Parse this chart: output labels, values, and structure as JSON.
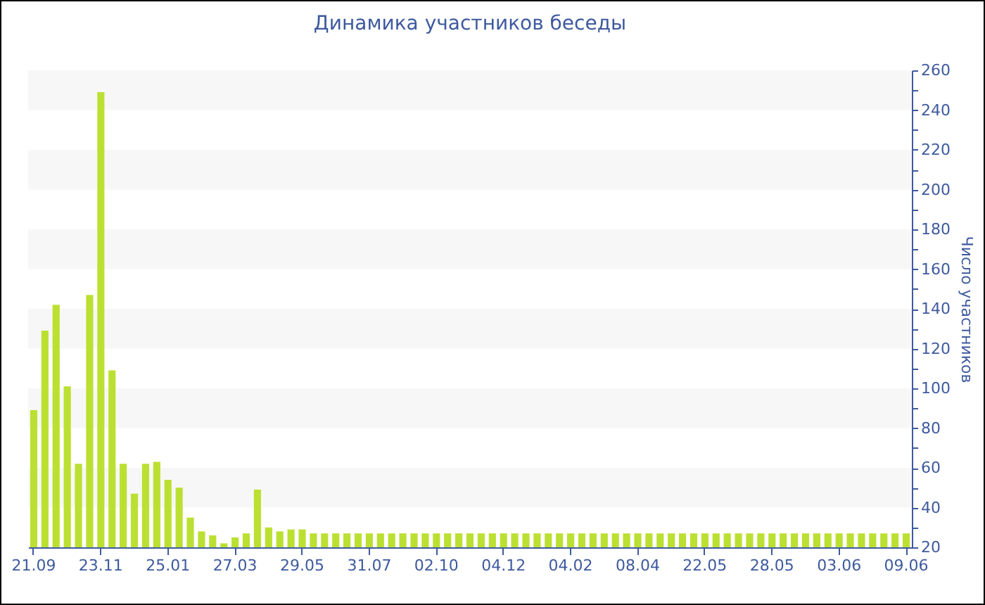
{
  "chart_data": {
    "type": "bar",
    "title": "Динамика участников беседы",
    "ylabel": "Число участников",
    "categories": [
      "21.09",
      null,
      null,
      null,
      null,
      null,
      "23.11",
      null,
      null,
      null,
      null,
      null,
      "25.01",
      null,
      null,
      null,
      null,
      null,
      "27.03",
      null,
      null,
      null,
      null,
      null,
      "29.05",
      null,
      null,
      null,
      null,
      null,
      "31.07",
      null,
      null,
      null,
      null,
      null,
      "02.10",
      null,
      null,
      null,
      null,
      null,
      "04.12",
      null,
      null,
      null,
      null,
      null,
      "04.02",
      null,
      null,
      null,
      null,
      null,
      "08.04",
      null,
      null,
      null,
      null,
      null,
      "22.05",
      null,
      null,
      null,
      null,
      null,
      "28.05",
      null,
      null,
      null,
      null,
      null,
      "03.06",
      null,
      null,
      null,
      null,
      null,
      "09.06"
    ],
    "values": [
      89,
      129,
      142,
      101,
      62,
      147,
      249,
      109,
      62,
      47,
      62,
      63,
      54,
      50,
      35,
      28,
      26,
      22,
      25,
      27,
      49,
      30,
      28,
      29,
      29,
      27,
      27,
      27,
      27,
      27,
      27,
      27,
      27,
      27,
      27,
      27,
      27,
      27,
      27,
      27,
      27,
      27,
      27,
      27,
      27,
      27,
      27,
      27,
      27,
      27,
      27,
      27,
      27,
      27,
      27,
      27,
      27,
      27,
      27,
      27,
      27,
      27,
      27,
      27,
      27,
      27,
      27,
      27,
      27,
      27,
      27,
      27,
      27,
      27,
      27,
      27,
      27,
      27,
      27
    ],
    "color": "#bbe032",
    "ylim": [
      20,
      260
    ],
    "yticks": [
      20,
      {
        "value": 30,
        "label": null
      },
      40,
      {
        "value": 50,
        "label": null
      },
      60,
      {
        "value": 70,
        "label": null
      },
      80,
      {
        "value": 90,
        "label": null
      },
      100,
      {
        "value": 110,
        "label": null
      },
      120,
      {
        "value": 130,
        "label": null
      },
      140,
      {
        "value": 150,
        "label": null
      },
      160,
      {
        "value": 170,
        "label": null
      },
      180,
      {
        "value": 190,
        "label": null
      },
      200,
      {
        "value": 210,
        "label": null
      },
      220,
      {
        "value": 230,
        "label": null
      },
      240,
      {
        "value": 250,
        "label": null
      },
      260
    ],
    "bands": [
      {
        "axis": "y",
        "from": 40,
        "to": 60,
        "color": "#f7f7f7"
      },
      {
        "axis": "y",
        "from": 80,
        "to": 100,
        "color": "#f7f7f7"
      },
      {
        "axis": "y",
        "from": 120,
        "to": 140,
        "color": "#f7f7f7"
      },
      {
        "axis": "y",
        "from": 160,
        "to": 180,
        "color": "#f7f7f7"
      },
      {
        "axis": "y",
        "from": 200,
        "to": 220,
        "color": "#f7f7f7"
      },
      {
        "axis": "y",
        "from": 240,
        "to": 260,
        "color": "#f7f7f7"
      }
    ]
  }
}
